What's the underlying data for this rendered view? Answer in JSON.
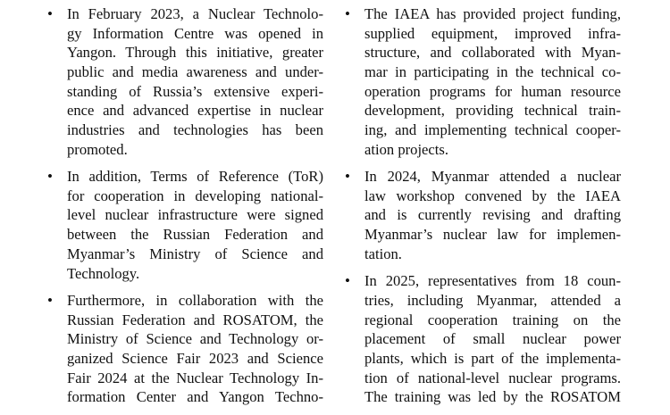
{
  "columns": [
    {
      "items": [
        {
          "lines": [
            "In February 2023, a Nuclear Technolo-",
            "gy Information Centre was opened in",
            "Yangon. Through this initiative, greater",
            "public and media awareness and under-",
            "standing of Russia’s extensive experi-",
            "ence and advanced expertise in nuclear",
            "industries and technologies has been",
            "promoted."
          ]
        },
        {
          "lines": [
            "In addition, Terms of Reference (ToR)",
            "for cooperation in developing national-",
            "level nuclear infrastructure were signed",
            "between the Russian Federation and",
            "Myanmar’s Ministry of Science and",
            "Technology."
          ]
        },
        {
          "lines": [
            "Furthermore, in collaboration with the",
            "Russian Federation and ROSATOM, the",
            "Ministry of Science and Technology or-",
            "ganized Science Fair 2023 and Science",
            "Fair 2024 at the Nuclear Technology In-",
            "formation Center and Yangon Techno-"
          ],
          "continues": true
        }
      ]
    },
    {
      "items": [
        {
          "lines": [
            "The IAEA has provided project funding,",
            "supplied equipment, improved infra-",
            "structure, and collaborated with Myan-",
            "mar in participating in the technical co-",
            "operation programs for human resource",
            "development, providing technical train-",
            "ing, and implementing technical cooper-",
            "ation projects."
          ]
        },
        {
          "lines": [
            "In 2024, Myanmar attended a nuclear",
            "law workshop convened by the IAEA",
            "and is currently revising and drafting",
            "Myanmar’s nuclear law for implemen-",
            "tation."
          ]
        },
        {
          "lines": [
            "In 2025, representatives from 18 coun-",
            "tries, including Myanmar, attended a",
            "regional cooperation training on the",
            "placement of small nuclear power",
            "plants, which is part of the implementa-",
            "tion of national-level nuclear programs.",
            "The training was led by the ROSATOM"
          ],
          "continues": true
        }
      ]
    }
  ]
}
